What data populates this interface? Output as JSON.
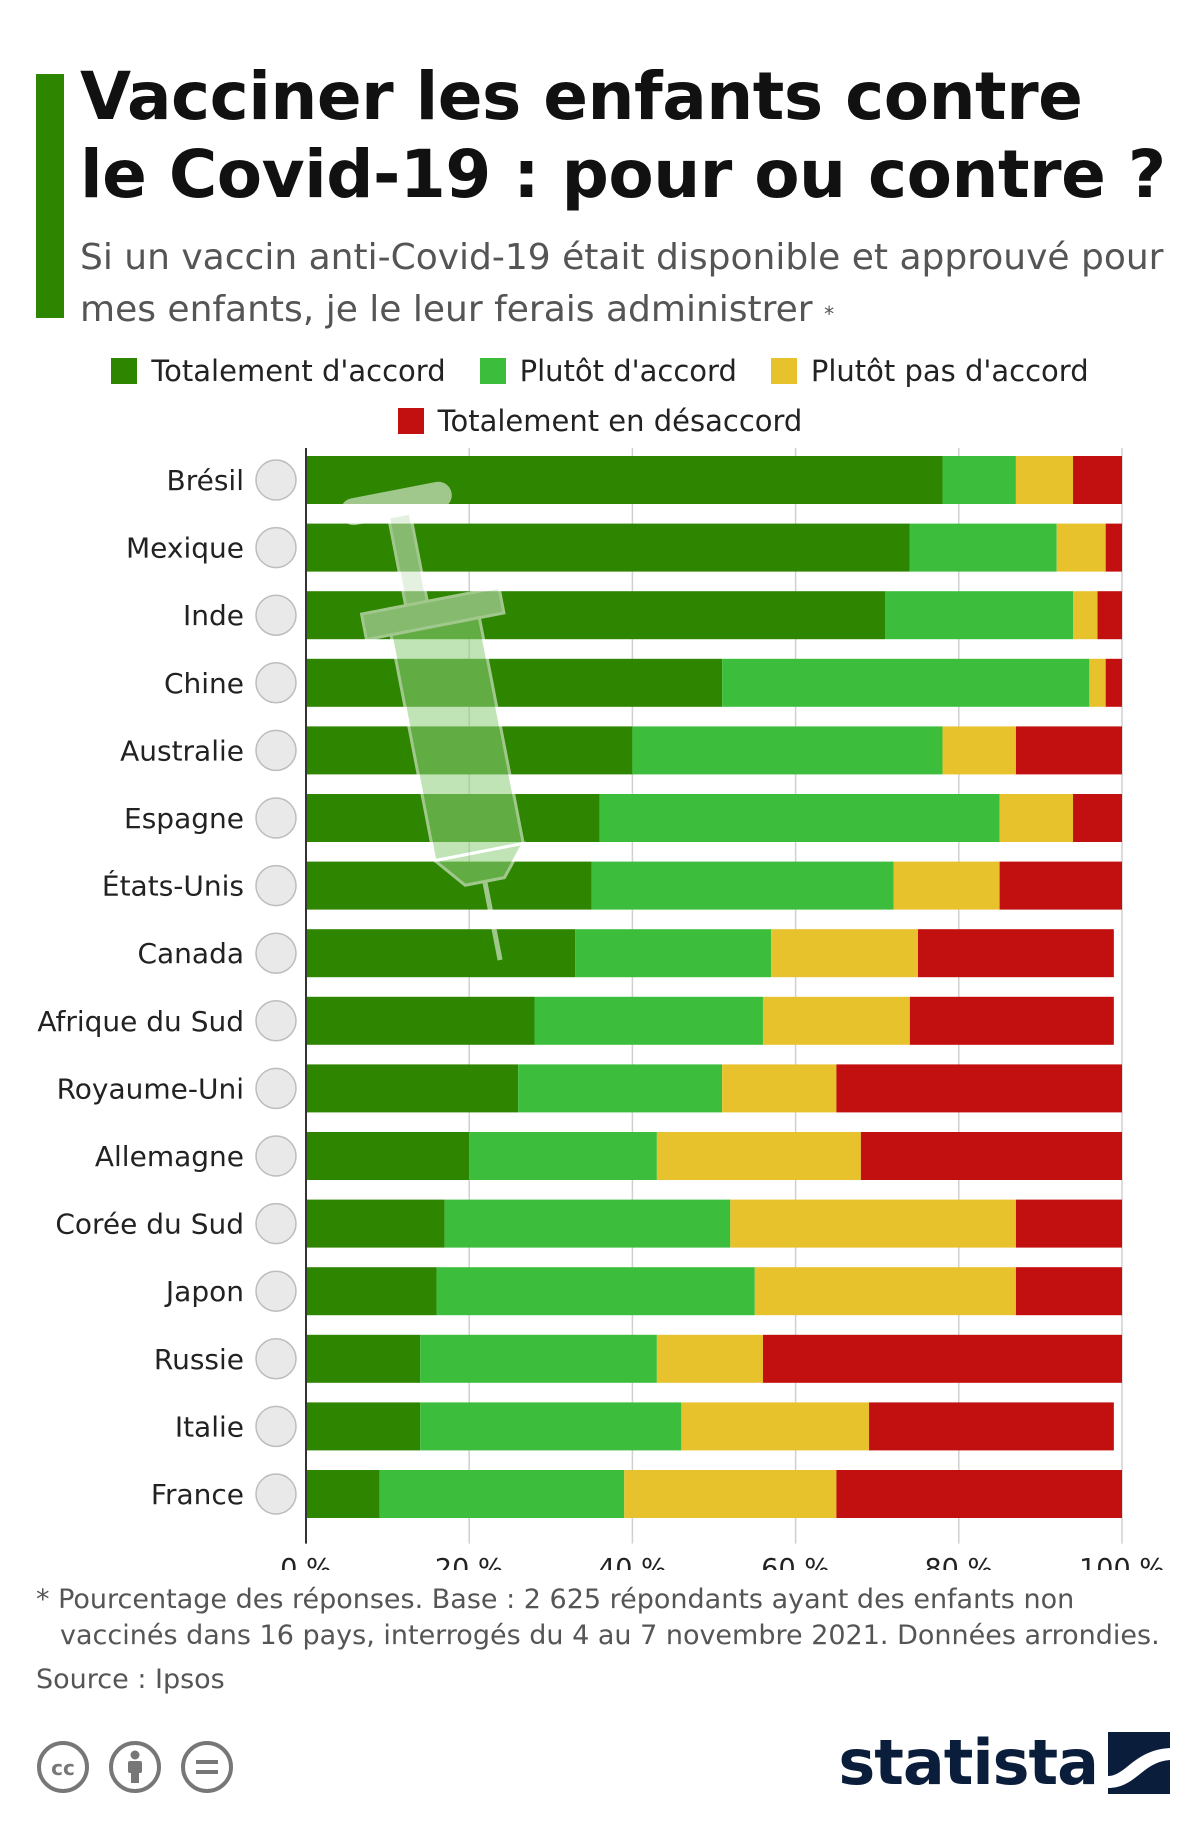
{
  "header": {
    "title": "Vacciner les enfants contre le Covid-19 : pour ou contre ?",
    "subtitle": "Si un vaccin anti-Covid-19 était disponible et approuvé pour mes enfants, je le leur ferais administrer",
    "subtitle_marker": "*"
  },
  "legend": {
    "items": [
      {
        "label": "Totalement d'accord",
        "color": "#2e8500"
      },
      {
        "label": "Plutôt d'accord",
        "color": "#3cbe3c"
      },
      {
        "label": "Plutôt pas d'accord",
        "color": "#e8c22d"
      },
      {
        "label": "Totalement en désaccord",
        "color": "#c20f0f"
      }
    ]
  },
  "chart_data": {
    "type": "bar",
    "orientation": "horizontal",
    "stacked": true,
    "categories": [
      "Brésil",
      "Mexique",
      "Inde",
      "Chine",
      "Australie",
      "Espagne",
      "États-Unis",
      "Canada",
      "Afrique du Sud",
      "Royaume-Uni",
      "Allemagne",
      "Corée du Sud",
      "Japon",
      "Russie",
      "Italie",
      "France"
    ],
    "series": [
      {
        "name": "Totalement d'accord",
        "color": "#2e8500",
        "values": [
          78,
          74,
          71,
          51,
          40,
          36,
          35,
          33,
          28,
          26,
          20,
          17,
          16,
          14,
          14,
          9
        ]
      },
      {
        "name": "Plutôt d'accord",
        "color": "#3cbe3c",
        "values": [
          9,
          18,
          23,
          45,
          38,
          49,
          37,
          24,
          28,
          25,
          23,
          35,
          39,
          29,
          32,
          30
        ]
      },
      {
        "name": "Plutôt pas d'accord",
        "color": "#e8c22d",
        "values": [
          7,
          6,
          3,
          2,
          9,
          9,
          13,
          18,
          18,
          14,
          25,
          35,
          32,
          13,
          23,
          26
        ]
      },
      {
        "name": "Totalement en désaccord",
        "color": "#c20f0f",
        "values": [
          6,
          2,
          3,
          2,
          13,
          6,
          15,
          24,
          25,
          35,
          32,
          13,
          13,
          44,
          30,
          35
        ]
      }
    ],
    "x_ticks": [
      "0 %",
      "20 %",
      "40 %",
      "60 %",
      "80 %",
      "100 %"
    ],
    "xlim": [
      0,
      100
    ],
    "grid": true
  },
  "footer": {
    "note_line1": "* Pourcentage des réponses. Base : 2 625 répondants ayant des enfants non",
    "note_line2": "vaccinés dans 16 pays, interrogés du 4 au 7 novembre 2021. Données arrondies.",
    "source": "Source : Ipsos",
    "brand": "statista"
  }
}
